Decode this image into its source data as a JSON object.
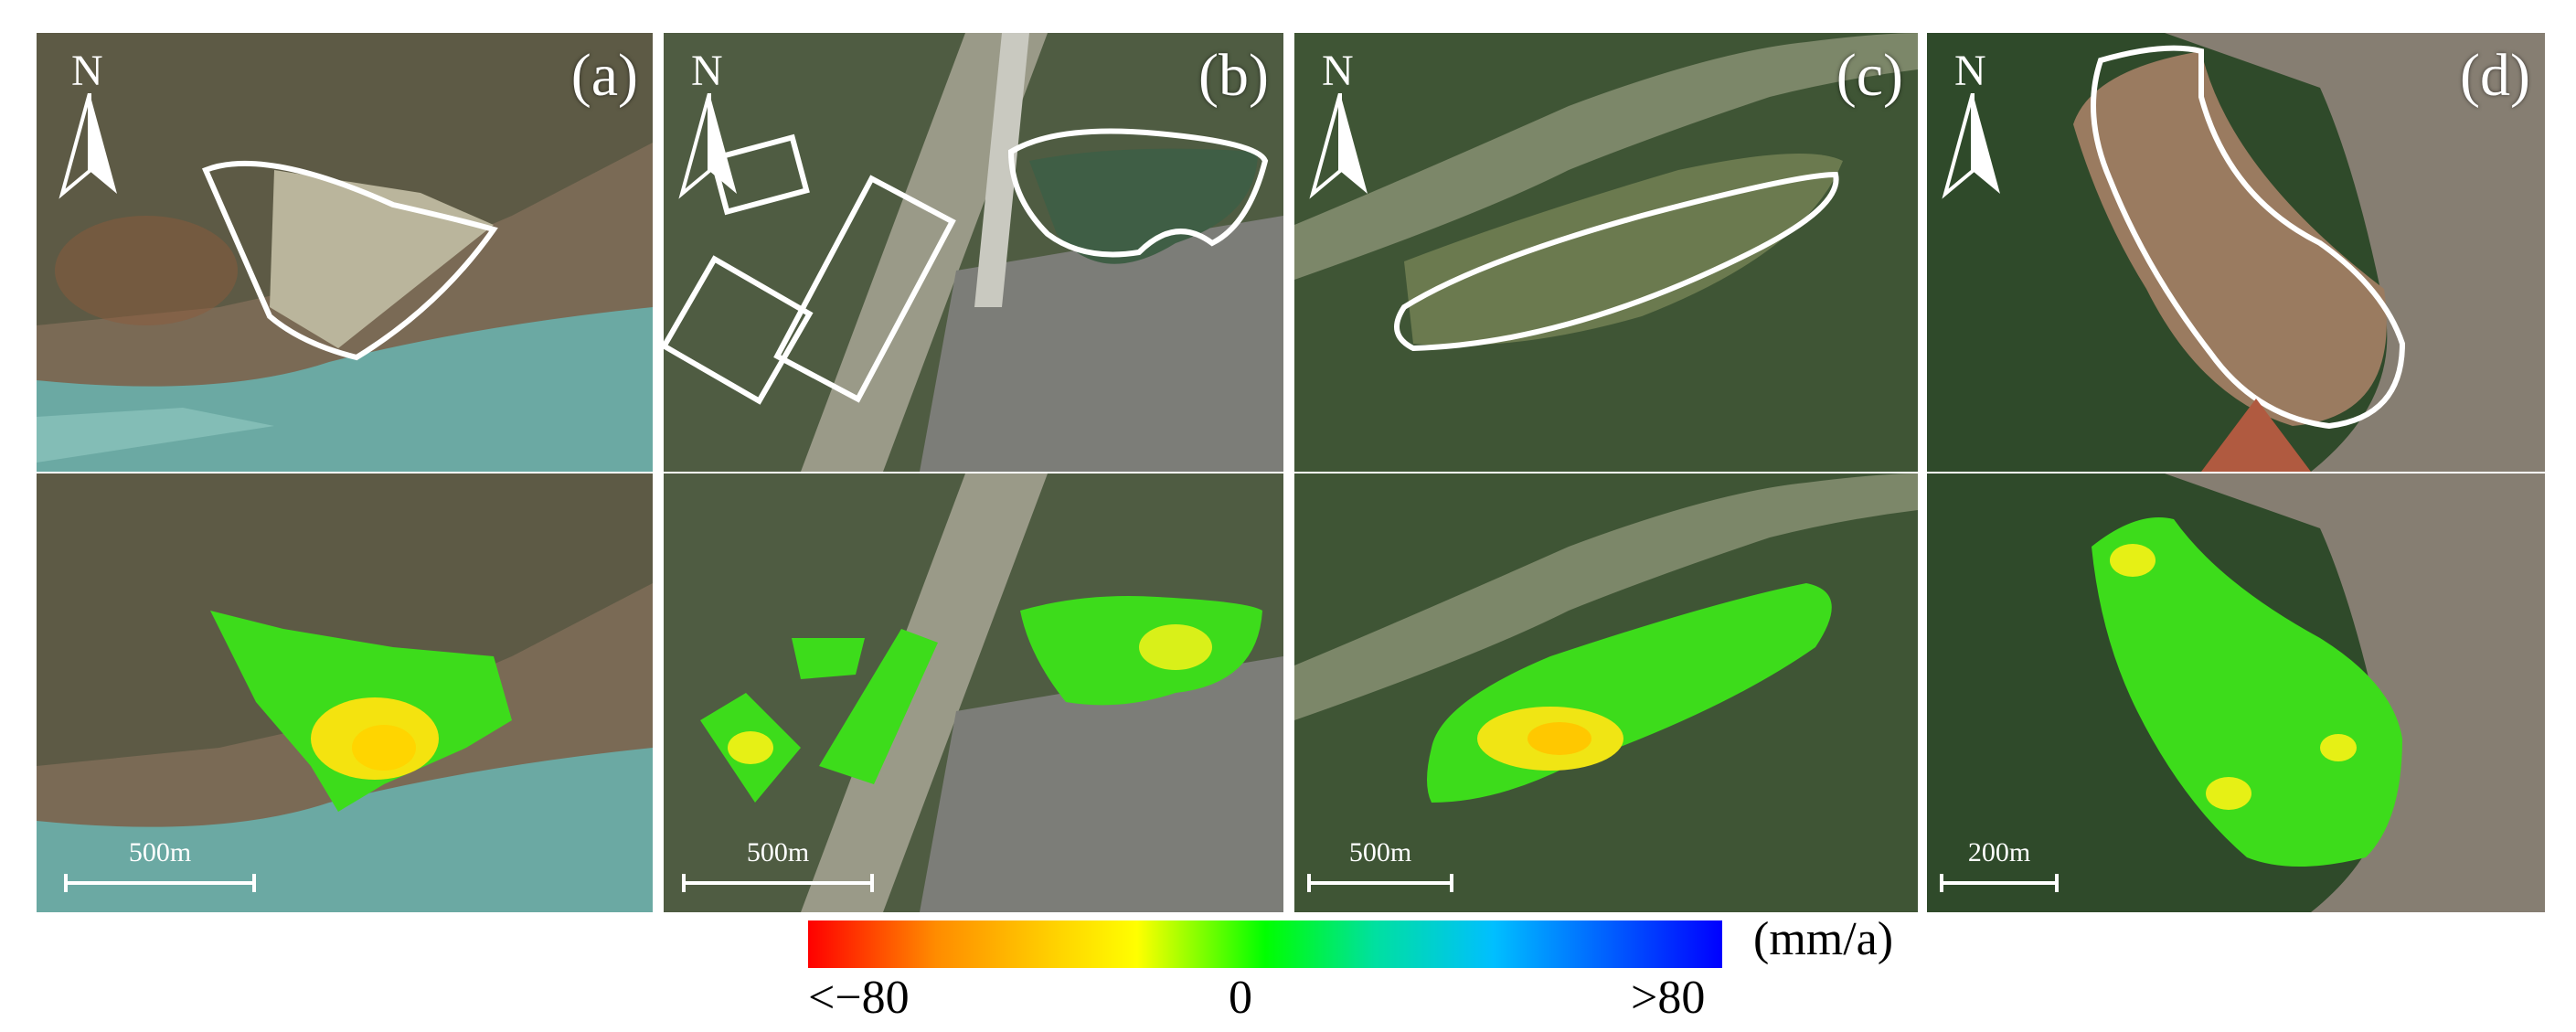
{
  "panels": [
    {
      "id": "a",
      "label": "(a)",
      "north": "N",
      "scale": ""
    },
    {
      "id": "b",
      "label": "(b)",
      "north": "N",
      "scale": ""
    },
    {
      "id": "c",
      "label": "(c)",
      "north": "N",
      "scale": ""
    },
    {
      "id": "d",
      "label": "(d)",
      "north": "N",
      "scale": ""
    }
  ],
  "scalebars": {
    "a": "500m",
    "b": "500m",
    "c": "500m",
    "d": "200m"
  },
  "legend": {
    "unit": "(mm/a)",
    "min_label": "<−80",
    "mid_label": "0",
    "max_label": ">80",
    "colors": [
      "#ff0000",
      "#ff8c00",
      "#ffd700",
      "#ffff00",
      "#00ff00",
      "#00e0a0",
      "#00bfff",
      "#0000ff"
    ]
  },
  "icons": {
    "north_arrow": "north-arrow-icon"
  }
}
